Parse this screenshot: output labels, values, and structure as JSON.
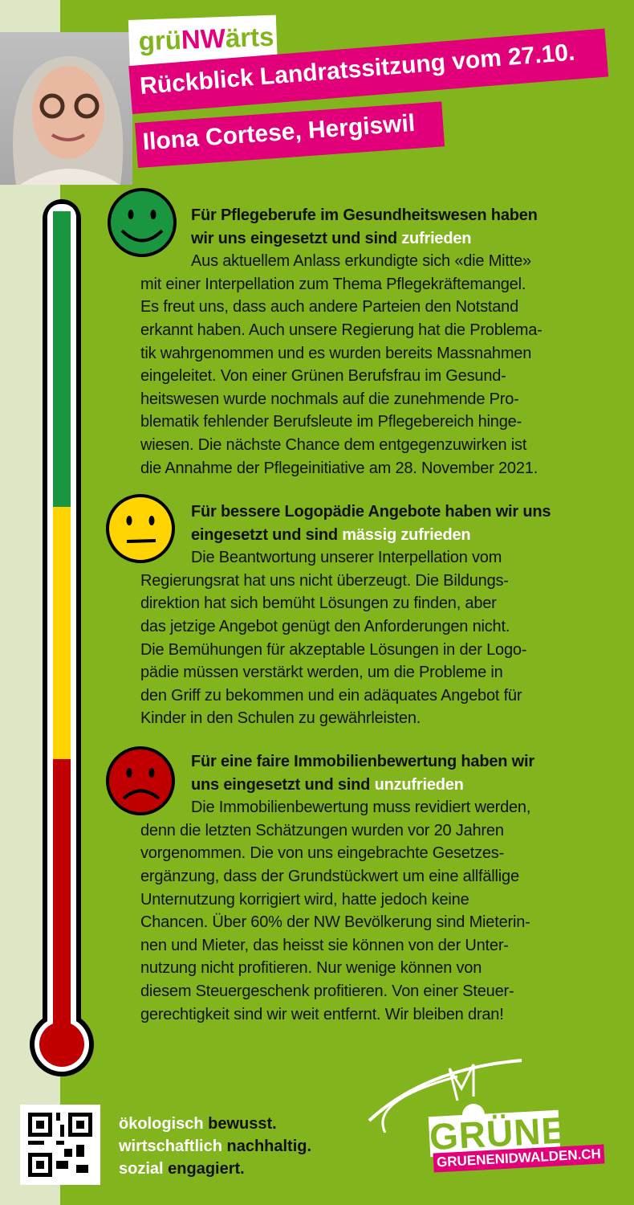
{
  "header": {
    "logo_prefix": "grü",
    "logo_mark": "NW",
    "logo_suffix": "ärts",
    "title": "Rückblick Landratssitzung vom 27.10.",
    "author": "Ilona Cortese, Hergiswil"
  },
  "colors": {
    "green": "#82b41e",
    "pink": "#e2007a",
    "thermo_green": "#1a9641",
    "thermo_yellow": "#ffd400",
    "thermo_red": "#c00000"
  },
  "sections": [
    {
      "mood": "happy",
      "heading": [
        "Für Pflegeberufe im Gesundheitswesen haben",
        "wir uns eingesetzt und sind "
      ],
      "rating": "zufrieden",
      "body": [
        "Aus aktuellem Anlass erkundigte sich «die Mitte»",
        "mit einer Interpellation zum Thema Pflegekräftemangel.",
        "Es freut uns, dass auch andere Parteien den Notstand",
        "erkannt haben. Auch unsere Regierung hat die Problema-",
        "tik wahrgenommen und es wurden bereits Massnahmen",
        "eingeleitet. Von einer Grünen Berufsfrau im Gesund-",
        "heitswesen wurde nochmals auf die zunehmende Pro-",
        "blematik fehlender Berufsleute im Pflegebereich hinge-",
        "wiesen. Die nächste Chance dem entgegenzuwirken ist",
        "die Annahme der Pflegeinitiative am 28. November 2021."
      ]
    },
    {
      "mood": "neutral",
      "heading": [
        "Für bessere Logopädie Angebote haben wir uns",
        "eingesetzt und sind "
      ],
      "rating": "mässig zufrieden",
      "body": [
        "Die Beantwortung unserer Interpellation vom",
        "Regierungsrat hat uns nicht überzeugt. Die Bildungs-",
        "direktion hat sich bemüht Lösungen zu finden, aber",
        "das jetzige Angebot genügt den Anforderungen nicht.",
        "Die Bemühungen für akzeptable Lösungen in der Logo-",
        "pädie müssen verstärkt werden, um die Probleme in",
        "den Griff zu bekommen und ein adäquates Angebot für",
        "Kinder in den Schulen zu gewährleisten."
      ]
    },
    {
      "mood": "sad",
      "heading": [
        "Für eine faire Immobilienbewertung haben wir",
        "uns eingesetzt und sind "
      ],
      "rating": "unzufrieden",
      "body": [
        "Die Immobilienbewertung muss revidiert werden,",
        "denn die letzten Schätzungen wurden vor 20 Jahren",
        "vorgenommen. Die von uns eingebrachte Gesetzes-",
        "ergänzung, dass der Grundstückwert um eine allfällige",
        "Unternutzung korrigiert wird, hatte jedoch keine",
        "Chancen. Über 60% der NW Bevölkerung sind Mieterin-",
        "nen und Mieter, das heisst sie können von der Unter-",
        "nutzung nicht profitieren. Nur wenige können von",
        "diesem Steuergeschenk profitieren. Von einer Steuer-",
        "gerechtigkeit sind wir weit entfernt. Wir bleiben dran!"
      ]
    }
  ],
  "footer": {
    "slogan": [
      [
        "ökologisch ",
        "bewusst."
      ],
      [
        "wirtschaftlich ",
        "nachhaltig."
      ],
      [
        "sozial ",
        "engagiert."
      ]
    ],
    "brand": "GRÜNE",
    "url": "GRUENENIDWALDEN.CH"
  }
}
